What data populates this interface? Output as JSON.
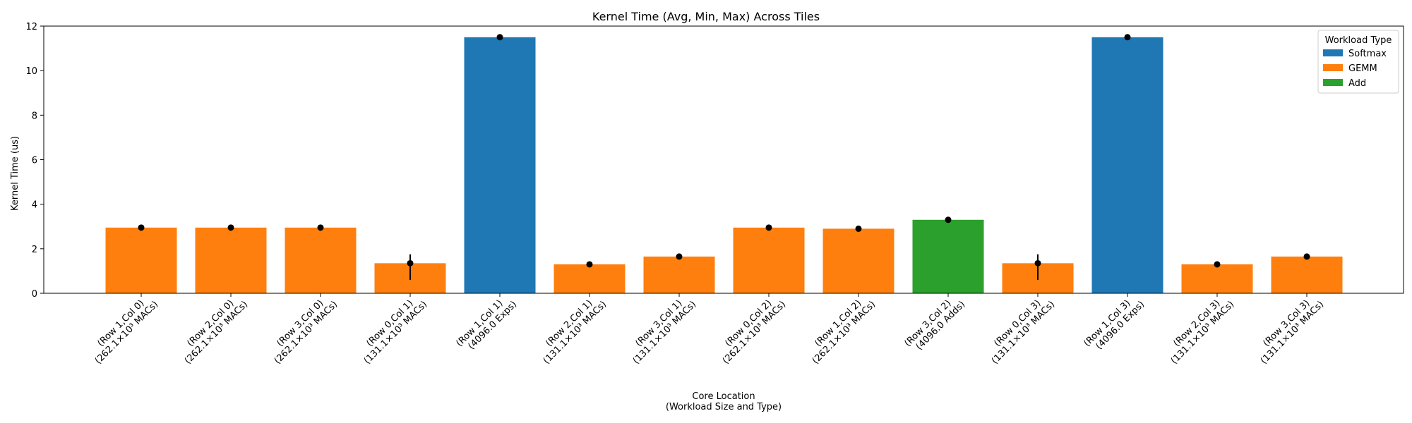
{
  "chart_data": {
    "type": "bar",
    "title": "Kernel Time (Avg, Min, Max) Across Tiles",
    "xlabel": [
      "Core Location",
      "(Workload Size and Type)"
    ],
    "ylabel": "Kernel Time (us)",
    "ylim": [
      0,
      12
    ],
    "yticks": [
      0,
      2,
      4,
      6,
      8,
      10,
      12
    ],
    "grid": false,
    "legend": {
      "title": "Workload Type",
      "placement": "top-right",
      "entries": [
        {
          "label": "Softmax",
          "color": "#1f77b4"
        },
        {
          "label": "GEMM",
          "color": "#ff7f0e"
        },
        {
          "label": "Add",
          "color": "#2ca02c"
        }
      ]
    },
    "bars": [
      {
        "loc": "(Row 1,Col 0)",
        "size": "(262.1×10³ MACs)",
        "type": "GEMM",
        "avg": 2.95,
        "min": 2.95,
        "max": 2.95
      },
      {
        "loc": "(Row 2,Col 0)",
        "size": "(262.1×10³ MACs)",
        "type": "GEMM",
        "avg": 2.95,
        "min": 2.95,
        "max": 2.95
      },
      {
        "loc": "(Row 3,Col 0)",
        "size": "(262.1×10³ MACs)",
        "type": "GEMM",
        "avg": 2.95,
        "min": 2.95,
        "max": 2.95
      },
      {
        "loc": "(Row 0,Col 1)",
        "size": "(131.1×10³ MACs)",
        "type": "GEMM",
        "avg": 1.35,
        "min": 0.6,
        "max": 1.75
      },
      {
        "loc": "(Row 1,Col 1)",
        "size": "(4096.0 Exps)",
        "type": "Softmax",
        "avg": 11.5,
        "min": 11.5,
        "max": 11.5
      },
      {
        "loc": "(Row 2,Col 1)",
        "size": "(131.1×10³ MACs)",
        "type": "GEMM",
        "avg": 1.3,
        "min": 1.3,
        "max": 1.3
      },
      {
        "loc": "(Row 3,Col 1)",
        "size": "(131.1×10³ MACs)",
        "type": "GEMM",
        "avg": 1.65,
        "min": 1.65,
        "max": 1.65
      },
      {
        "loc": "(Row 0,Col 2)",
        "size": "(262.1×10³ MACs)",
        "type": "GEMM",
        "avg": 2.95,
        "min": 2.95,
        "max": 2.95
      },
      {
        "loc": "(Row 1,Col 2)",
        "size": "(262.1×10³ MACs)",
        "type": "GEMM",
        "avg": 2.9,
        "min": 2.9,
        "max": 2.9
      },
      {
        "loc": "(Row 3,Col 2)",
        "size": "(4096.0 Adds)",
        "type": "Add",
        "avg": 3.3,
        "min": 3.3,
        "max": 3.3
      },
      {
        "loc": "(Row 0,Col 3)",
        "size": "(131.1×10³ MACs)",
        "type": "GEMM",
        "avg": 1.35,
        "min": 0.6,
        "max": 1.75
      },
      {
        "loc": "(Row 1,Col 3)",
        "size": "(4096.0 Exps)",
        "type": "Softmax",
        "avg": 11.5,
        "min": 11.5,
        "max": 11.5
      },
      {
        "loc": "(Row 2,Col 3)",
        "size": "(131.1×10³ MACs)",
        "type": "GEMM",
        "avg": 1.3,
        "min": 1.3,
        "max": 1.3
      },
      {
        "loc": "(Row 3,Col 3)",
        "size": "(131.1×10³ MACs)",
        "type": "GEMM",
        "avg": 1.65,
        "min": 1.65,
        "max": 1.65
      }
    ]
  }
}
